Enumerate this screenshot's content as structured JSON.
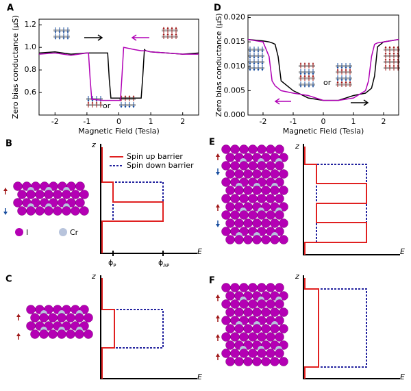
{
  "chart_data": [
    {
      "type": "line",
      "panel": "A",
      "x_label": "Magnetic Field (Tesla)",
      "y_label": "Zero bias conductance (μS)",
      "xlim": [
        -2.5,
        2.5
      ],
      "ylim": [
        0.4,
        1.25
      ],
      "xticks": [
        -2,
        -1,
        0,
        1,
        2
      ],
      "yticks": [
        0.6,
        0.8,
        {
          "value": 1,
          "label": "1.0"
        },
        1.2
      ],
      "x": [
        -2.5,
        -2,
        -1.5,
        -1,
        -0.95,
        -0.9,
        -0.85,
        -0.5,
        -0.35,
        -0.3,
        -0.25,
        0,
        0.05,
        0.1,
        0.15,
        0.5,
        0.7,
        0.75,
        0.8,
        0.85,
        1,
        1.5,
        2,
        2.5
      ],
      "series": [
        {
          "color": "#000000",
          "values": [
            0.95,
            0.96,
            0.94,
            0.95,
            0.95,
            0.95,
            0.95,
            0.95,
            0.95,
            0.72,
            0.55,
            0.55,
            0.55,
            0.55,
            0.55,
            0.55,
            0.55,
            0.75,
            0.98,
            0.97,
            0.96,
            0.95,
            0.94,
            0.95
          ]
        },
        {
          "color": "#b000b5",
          "values": [
            0.94,
            0.95,
            0.93,
            0.95,
            0.95,
            0.72,
            0.54,
            0.53,
            0.53,
            0.53,
            0.53,
            0.53,
            0.53,
            0.76,
            1.0,
            0.98,
            0.97,
            0.97,
            0.97,
            0.97,
            0.96,
            0.95,
            0.94,
            0.94
          ]
        }
      ],
      "annotation": "or"
    },
    {
      "type": "line",
      "panel": "D",
      "x_label": "Magnetic Field (Tesla)",
      "y_label": "Zero bias conductance (μS)",
      "xlim": [
        -2.5,
        2.5
      ],
      "ylim": [
        0,
        0.0205
      ],
      "xticks": [
        -2,
        -1,
        0,
        1,
        2
      ],
      "yticks": [
        {
          "value": 0,
          "label": "0.000"
        },
        0.005,
        {
          "value": 0.01,
          "label": "0.010"
        },
        0.015,
        {
          "value": 0.02,
          "label": "0.020"
        }
      ],
      "x": [
        -2.5,
        -2,
        -1.8,
        -1.7,
        -1.6,
        -1.5,
        -1.4,
        -1,
        -0.5,
        0,
        0.5,
        1,
        1.4,
        1.5,
        1.6,
        1.7,
        1.8,
        2,
        2.5
      ],
      "series": [
        {
          "color": "#000000",
          "values": [
            0.0155,
            0.0152,
            0.015,
            0.0148,
            0.0145,
            0.012,
            0.007,
            0.005,
            0.0035,
            0.003,
            0.003,
            0.004,
            0.0045,
            0.005,
            0.0055,
            0.008,
            0.014,
            0.015,
            0.0155
          ]
        },
        {
          "color": "#b000b5",
          "values": [
            0.0155,
            0.015,
            0.012,
            0.007,
            0.006,
            0.0055,
            0.005,
            0.0045,
            0.004,
            0.003,
            0.003,
            0.0035,
            0.005,
            0.007,
            0.012,
            0.0145,
            0.0148,
            0.015,
            0.0155
          ]
        }
      ],
      "annotation": "or"
    }
  ],
  "diagrams": {
    "legend": [
      "Spin up barrier",
      "Spin down barrier"
    ],
    "atoms": [
      "I",
      "Cr"
    ],
    "panels": [
      {
        "label": "B",
        "z": "z",
        "E": "E"
      },
      {
        "label": "C",
        "z": "z",
        "E": "E"
      },
      {
        "label": "E",
        "z": "z",
        "E": "E"
      },
      {
        "label": "F",
        "z": "z",
        "E": "E"
      }
    ],
    "phi": [
      {
        "symbol": "ϕ",
        "sub": "P"
      },
      {
        "symbol": "ϕ",
        "sub": "AP"
      }
    ]
  }
}
